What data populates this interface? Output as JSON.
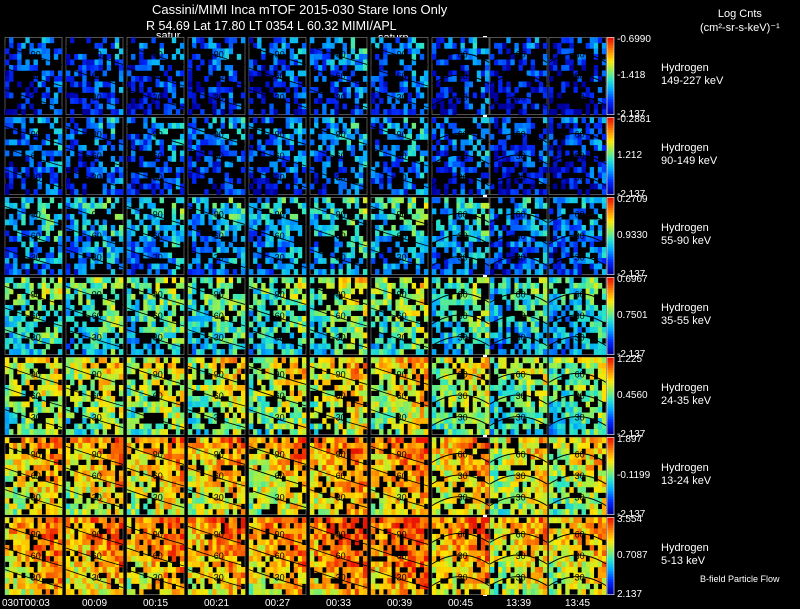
{
  "header": {
    "line1": "Cassini/MIMI Inca mTOF  2015-030    Stare    Ions Only",
    "line2": "R        54.69 Lat 17.80 LT 0354 L         60.32  MIMI/APL",
    "sat_label_left": "satur",
    "sat_label_right": "saturn",
    "legend_title": "Log Cnts",
    "legend_units": "(cm²-sr-s-keV)⁻¹"
  },
  "chart_data": {
    "type": "heatmap",
    "title": "Cassini/MIMI Inca mTOF  2015-030    Stare    Ions Only",
    "time_labels": [
      "030T00:03",
      "00:09",
      "00:15",
      "00:21",
      "00:27",
      "00:33",
      "00:39",
      "00:45",
      "13:39",
      "13:45"
    ],
    "contour_labels": [
      "120",
      "90",
      "60",
      "30"
    ],
    "rows": [
      {
        "species": "Hydrogen",
        "energy": "149-227 keV",
        "max": "-0.6990",
        "mid": "-1.418",
        "min": "-2.137",
        "level": 0.18
      },
      {
        "species": "Hydrogen",
        "energy": "90-149 keV",
        "max": "-0.2881",
        "mid": "1.212",
        "min": "-2.137",
        "level": 0.22
      },
      {
        "species": "Hydrogen",
        "energy": "55-90 keV",
        "max": "0.2709",
        "mid": "0.9330",
        "min": "-2.137",
        "level": 0.34
      },
      {
        "species": "Hydrogen",
        "energy": "35-55 keV",
        "max": "0.6967",
        "mid": "0.7501",
        "min": "-2.137",
        "level": 0.48
      },
      {
        "species": "Hydrogen",
        "energy": "24-35 keV",
        "max": "1.225",
        "mid": "0.4560",
        "min": "-2.137",
        "level": 0.6
      },
      {
        "species": "Hydrogen",
        "energy": "13-24 keV",
        "max": "1.897",
        "mid": "-0.1199",
        "min": "-2.137",
        "level": 0.72
      },
      {
        "species": "Hydrogen",
        "energy": "5-13 keV",
        "max": "3.554",
        "mid": "0.7087",
        "min": "2.137",
        "level": 0.78
      }
    ],
    "footnote": "B-field Particle Flow"
  }
}
